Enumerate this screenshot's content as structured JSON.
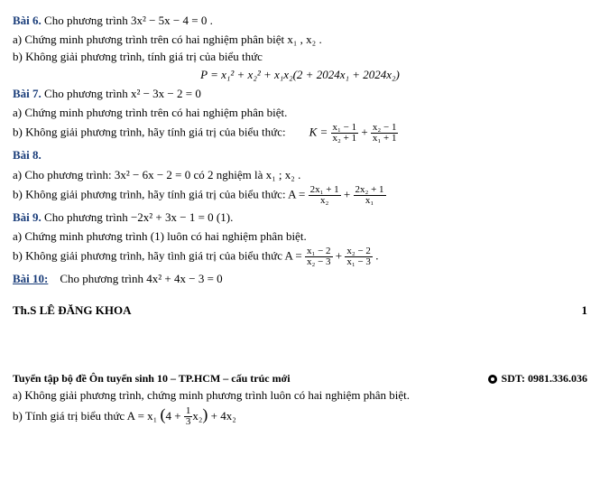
{
  "bai6": {
    "title": "Bài 6.",
    "stem": "Cho phương trình  3x² − 5x − 4 = 0 .",
    "a": "a) Chứng minh phương trình trên có hai nghiệm phân biệt  x₁ , x₂ .",
    "b": "b) Không giải phương trình, tính giá trị của biểu thức",
    "eq": "P = x₁² + x₂² + x₁x₂(2 + 2024x₁ + 2024x₂)"
  },
  "bai7": {
    "title": "Bài 7.",
    "stem": "Cho phương trình  x² − 3x − 2 = 0",
    "a": "a) Chứng minh phương trình trên có hai nghiệm phân biệt.",
    "b": "b) Không giải phương trình, hãy tính giá trị của biểu thức:",
    "K": "K =",
    "f1n": "x₁ − 1",
    "f1d": "x₂ + 1",
    "f2n": "x₂ − 1",
    "f2d": "x₁ + 1"
  },
  "bai8": {
    "title": "Bài 8.",
    "a": "a) Cho phương trình:  3x² − 6x − 2 = 0 có 2 nghiệm là x₁ ; x₂ .",
    "b": "b) Không giải phương trình, hãy tính giá trị của biểu thức:  A =",
    "f1n": "2x₁ + 1",
    "f1d": "x₂",
    "f2n": "2x₂ + 1",
    "f2d": "x₁"
  },
  "bai9": {
    "title": "Bài 9.",
    "stem": "Cho phương trình  −2x² + 3x − 1 = 0 (1).",
    "a": "a) Chứng minh phương trình (1) luôn có hai nghiệm phân biệt.",
    "b": "b) Không giải phương trình, hãy tình giá trị của biểu thức  A =",
    "f1n": "x₁ − 2",
    "f1d": "x₂ − 3",
    "f2n": "x₂ − 2",
    "f2d": "x₁ − 3"
  },
  "bai10": {
    "title": "Bài 10:",
    "stem": "Cho phương trình  4x² + 4x − 3 = 0"
  },
  "author": {
    "name": "Th.S LÊ ĐĂNG KHOA",
    "page": "1"
  },
  "footer": {
    "left": "Tuyển tập bộ đề Ôn tuyển sinh 10 – TP.HCM – cấu trúc mới",
    "right": "SDT: 0981.336.036"
  },
  "page2": {
    "a": "a) Không giải phương trình, chứng minh phương trình luôn có hai nghiệm phân biệt.",
    "b_prefix": "b) Tính giá trị biểu thức  A = x₁",
    "b_inner": "4 + ",
    "b_frac_n": "1",
    "b_frac_d": "3",
    "b_after": "x₂",
    "b_tail": " + 4x₂"
  }
}
